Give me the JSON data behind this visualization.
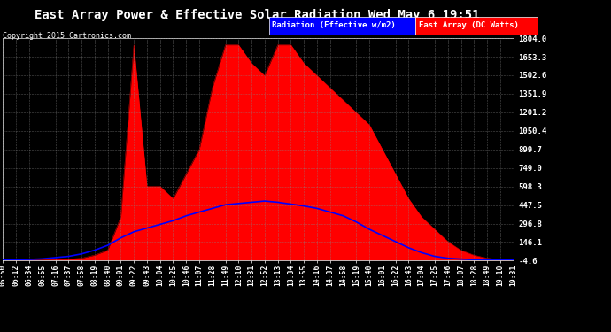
{
  "title": "East Array Power & Effective Solar Radiation Wed May 6 19:51",
  "copyright": "Copyright 2015 Cartronics.com",
  "legend_radiation": "Radiation (Effective w/m2)",
  "legend_east": "East Array (DC Watts)",
  "bg_color": "#000000",
  "text_color": "#ffffff",
  "radiation_color": "#0000ff",
  "east_color": "#ff0000",
  "yticks": [
    -4.6,
    146.1,
    296.8,
    447.5,
    598.3,
    749.0,
    899.7,
    1050.4,
    1201.2,
    1351.9,
    1502.6,
    1653.3,
    1804.0
  ],
  "ymin": -4.6,
  "ymax": 1804.0,
  "xtick_labels": [
    "05:50",
    "06:12",
    "06:34",
    "06:55",
    "07:16",
    "07:37",
    "07:58",
    "08:19",
    "08:40",
    "09:01",
    "09:22",
    "09:43",
    "10:04",
    "10:25",
    "10:46",
    "11:07",
    "11:28",
    "11:49",
    "12:10",
    "12:31",
    "12:52",
    "13:13",
    "13:34",
    "13:55",
    "14:16",
    "14:37",
    "14:58",
    "15:19",
    "15:40",
    "16:01",
    "16:22",
    "16:43",
    "17:04",
    "17:25",
    "17:46",
    "18:07",
    "18:28",
    "18:49",
    "19:10",
    "19:31"
  ]
}
